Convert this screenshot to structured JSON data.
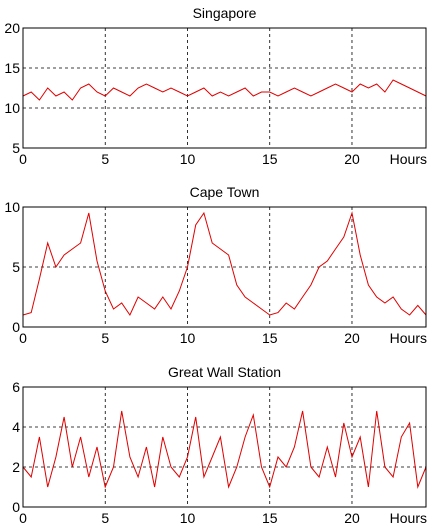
{
  "chart_data": [
    {
      "type": "line",
      "title": "Singapore",
      "xlabel": "Hours",
      "ylabel": "",
      "xlim": [
        0,
        24.5
      ],
      "ylim": [
        5,
        20
      ],
      "xticks": [
        0,
        5,
        10,
        15,
        20
      ],
      "yticks": [
        5,
        10,
        15,
        20
      ],
      "grid": true,
      "series": [
        {
          "color": "#e00000",
          "x": [
            0,
            0.5,
            1,
            1.5,
            2,
            2.5,
            3,
            3.5,
            4,
            4.5,
            5,
            5.5,
            6,
            6.5,
            7,
            7.5,
            8,
            8.5,
            9,
            9.5,
            10,
            10.5,
            11,
            11.5,
            12,
            12.5,
            13,
            13.5,
            14,
            14.5,
            15,
            15.5,
            16,
            16.5,
            17,
            17.5,
            18,
            18.5,
            19,
            19.5,
            20,
            20.5,
            21,
            21.5,
            22,
            22.5,
            23,
            23.5,
            24,
            24.5
          ],
          "y": [
            11.5,
            12,
            11,
            12.5,
            11.5,
            12,
            11,
            12.5,
            13,
            12,
            11.5,
            12.5,
            12,
            11.5,
            12.5,
            13,
            12.5,
            12,
            12.5,
            12,
            11.5,
            12,
            12.5,
            11.5,
            12,
            11.5,
            12,
            12.5,
            11.5,
            12,
            12,
            11.5,
            12,
            12.5,
            12,
            11.5,
            12,
            12.5,
            13,
            12.5,
            12,
            13,
            12.5,
            13,
            12,
            13.5,
            13,
            12.5,
            12,
            11.5
          ]
        }
      ]
    },
    {
      "type": "line",
      "title": "Cape Town",
      "xlabel": "Hours",
      "ylabel": "",
      "xlim": [
        0,
        24.5
      ],
      "ylim": [
        0,
        10
      ],
      "xticks": [
        0,
        5,
        10,
        15,
        20
      ],
      "yticks": [
        0,
        5,
        10
      ],
      "grid": true,
      "series": [
        {
          "color": "#e00000",
          "x": [
            0,
            0.5,
            1,
            1.5,
            2,
            2.5,
            3,
            3.5,
            4,
            4.5,
            5,
            5.5,
            6,
            6.5,
            7,
            7.5,
            8,
            8.5,
            9,
            9.5,
            10,
            10.5,
            11,
            11.5,
            12,
            12.5,
            13,
            13.5,
            14,
            14.5,
            15,
            15.5,
            16,
            16.5,
            17,
            17.5,
            18,
            18.5,
            19,
            19.5,
            20,
            20.5,
            21,
            21.5,
            22,
            22.5,
            23,
            23.5,
            24,
            24.5
          ],
          "y": [
            1,
            1.2,
            4,
            7,
            5,
            6,
            6.5,
            7,
            9.5,
            5.5,
            3,
            1.5,
            2,
            1,
            2.5,
            2,
            1.5,
            2.5,
            1.5,
            3,
            5,
            8.5,
            9.5,
            7,
            6.5,
            6,
            3.5,
            2.5,
            2,
            1.5,
            1,
            1.2,
            2,
            1.5,
            2.5,
            3.5,
            5,
            5.5,
            6.5,
            7.5,
            9.5,
            6,
            3.5,
            2.5,
            2,
            2.5,
            1.5,
            1,
            1.8,
            1
          ]
        }
      ]
    },
    {
      "type": "line",
      "title": "Great Wall Station",
      "xlabel": "Hours",
      "ylabel": "",
      "xlim": [
        0,
        24.5
      ],
      "ylim": [
        0,
        6
      ],
      "xticks": [
        0,
        5,
        10,
        15,
        20
      ],
      "yticks": [
        0,
        2,
        4,
        6
      ],
      "grid": true,
      "series": [
        {
          "color": "#e00000",
          "x": [
            0,
            0.5,
            1,
            1.5,
            2,
            2.5,
            3,
            3.5,
            4,
            4.5,
            5,
            5.5,
            6,
            6.5,
            7,
            7.5,
            8,
            8.5,
            9,
            9.5,
            10,
            10.5,
            11,
            11.5,
            12,
            12.5,
            13,
            13.5,
            14,
            14.5,
            15,
            15.5,
            16,
            16.5,
            17,
            17.5,
            18,
            18.5,
            19,
            19.5,
            20,
            20.5,
            21,
            21.5,
            22,
            22.5,
            23,
            23.5,
            24,
            24.5
          ],
          "y": [
            2,
            1.5,
            3.5,
            1,
            2.5,
            4.5,
            2,
            3.5,
            1.5,
            3,
            1,
            2,
            4.8,
            2.5,
            1.5,
            3,
            1,
            3.5,
            2,
            1.5,
            2.5,
            4.5,
            1.5,
            2.5,
            3.5,
            1,
            2,
            3.5,
            4.6,
            2,
            1,
            2.5,
            2,
            3,
            4.8,
            2,
            1.5,
            3,
            1.5,
            4.2,
            2.5,
            3.5,
            1,
            4.8,
            2,
            1.5,
            3.5,
            4.2,
            1,
            2
          ]
        }
      ]
    }
  ]
}
